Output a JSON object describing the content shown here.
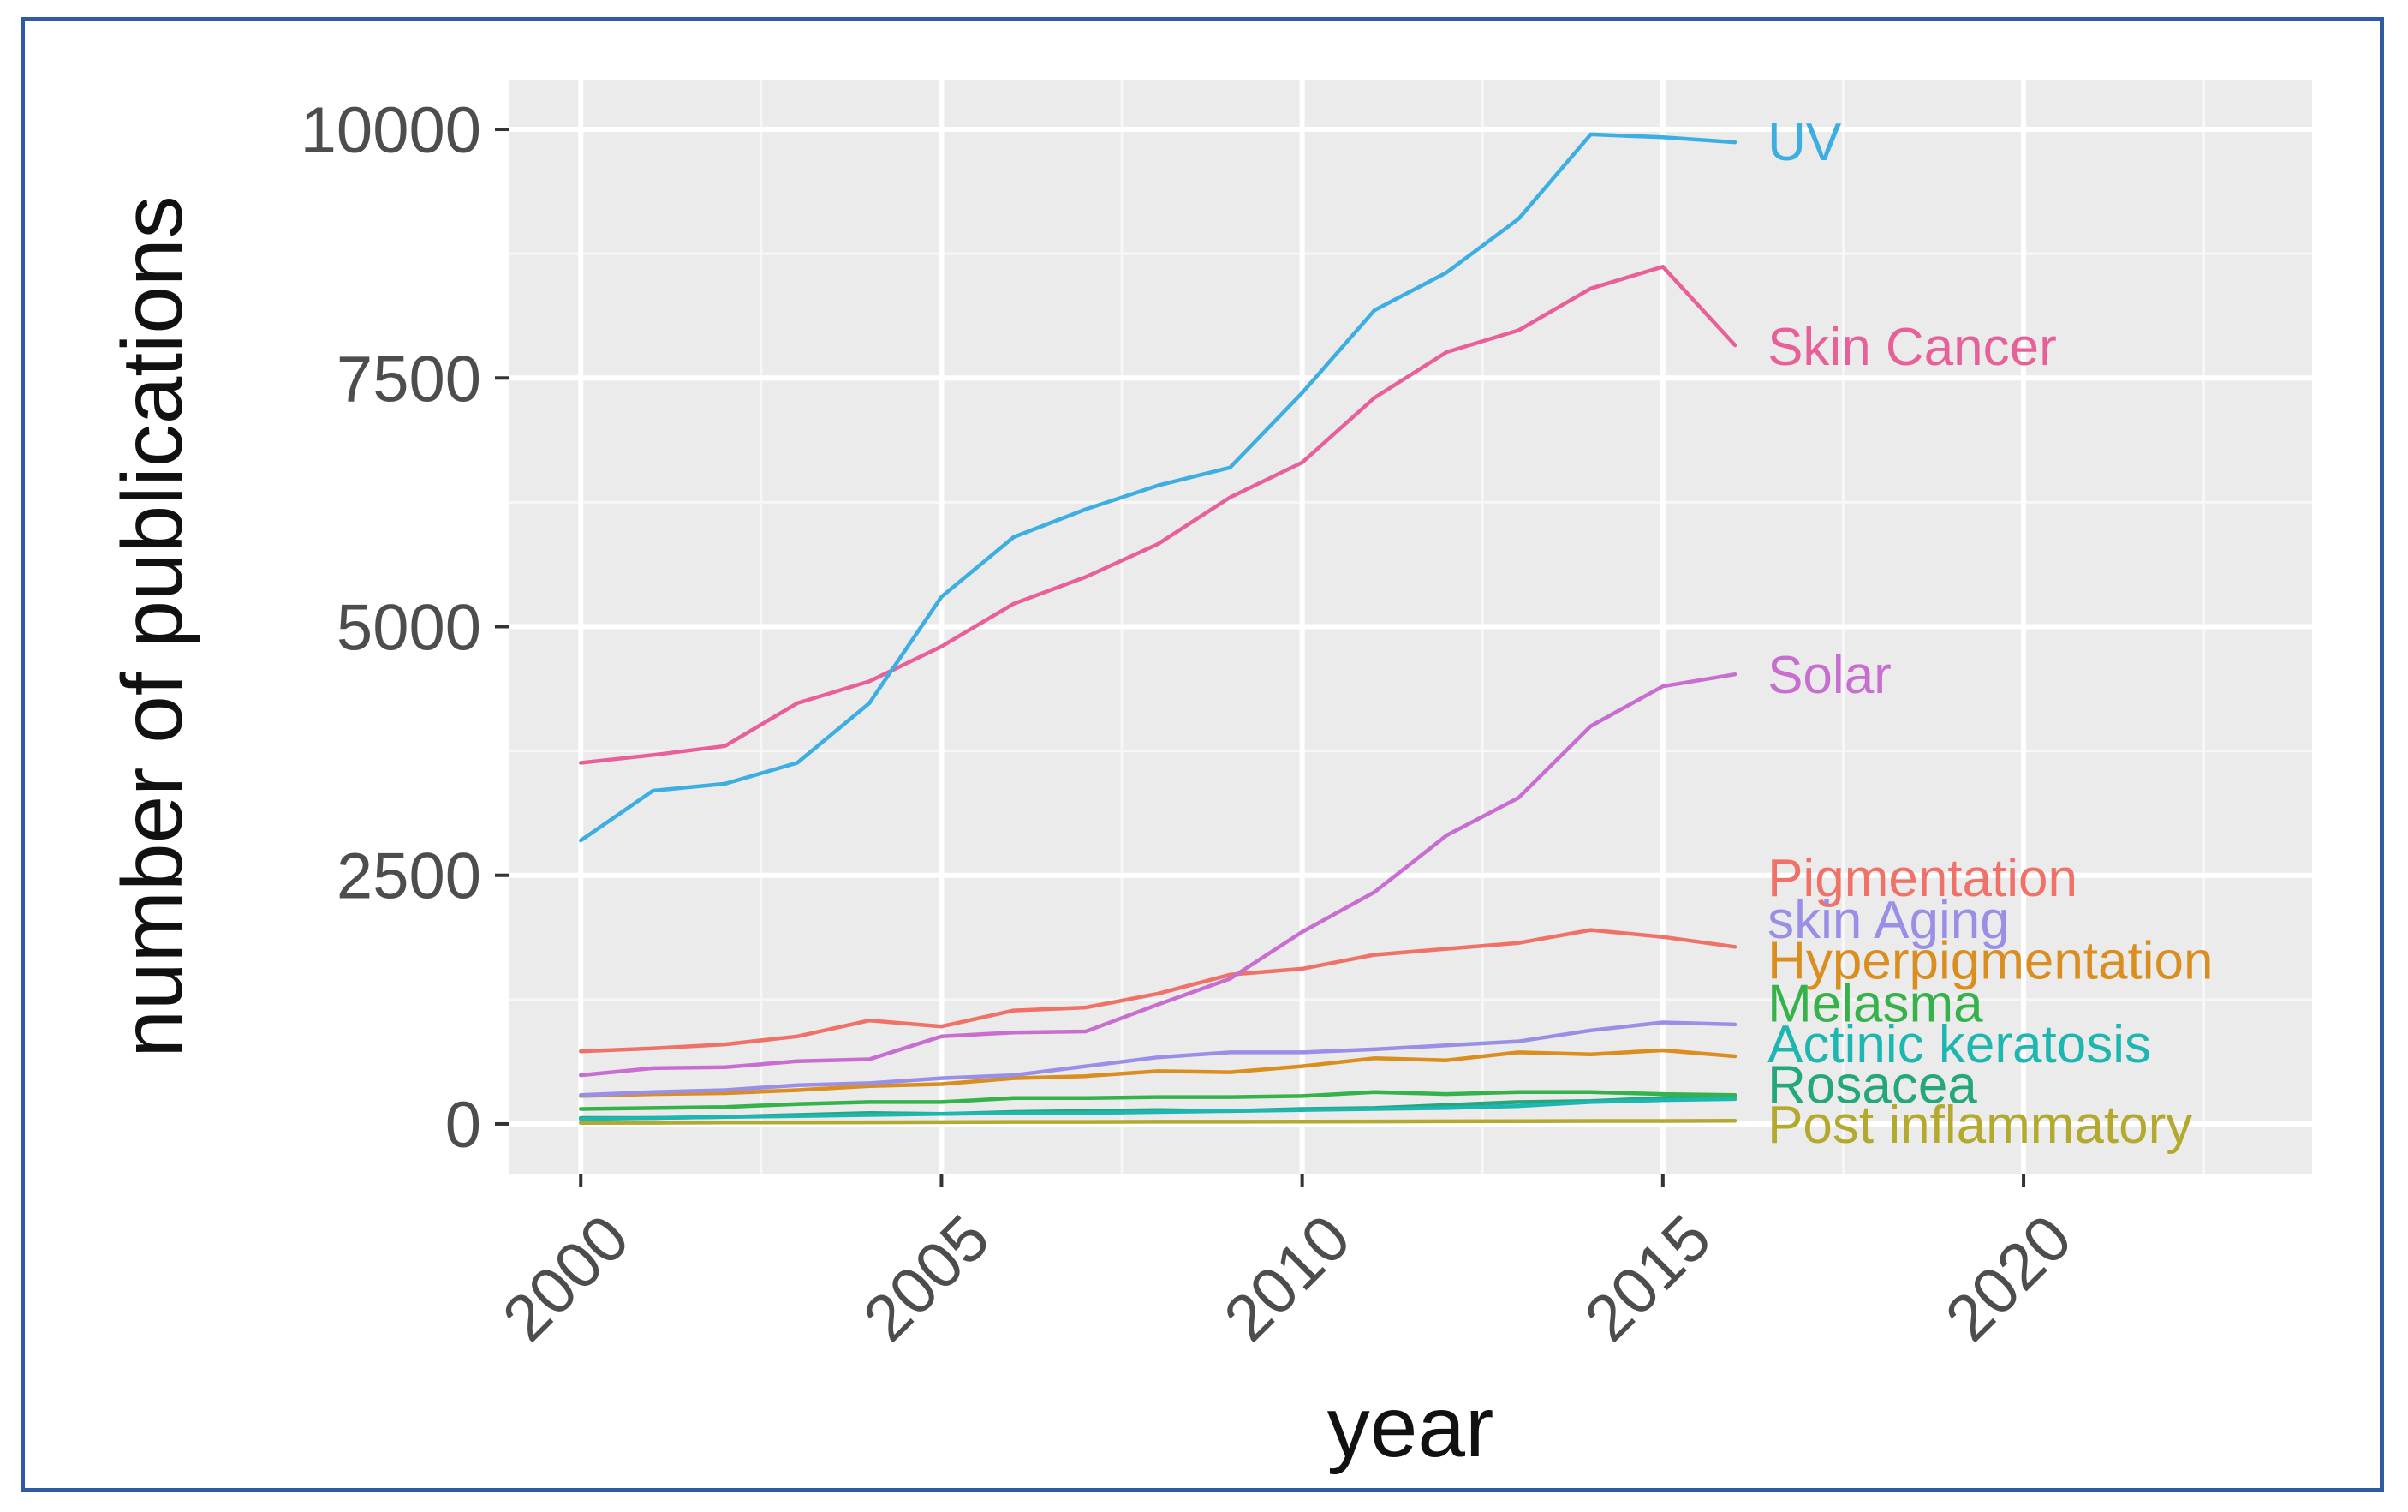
{
  "chart_data": {
    "type": "line",
    "title": "",
    "xlabel": "year",
    "ylabel": "number of publications",
    "xlim": [
      1999,
      2024
    ],
    "ylim": [
      -500,
      10500
    ],
    "x_ticks": [
      2000,
      2005,
      2010,
      2015,
      2020
    ],
    "y_ticks": [
      0,
      2500,
      5000,
      7500,
      10000
    ],
    "x_tick_labels": [
      "2000",
      "2005",
      "2010",
      "2015",
      "2020"
    ],
    "y_tick_labels": [
      "0",
      "2500",
      "5000",
      "7500",
      "10000"
    ],
    "grid": true,
    "legend": "direct labels at line ends (right)",
    "x": [
      2000,
      2001,
      2002,
      2003,
      2004,
      2005,
      2006,
      2007,
      2008,
      2009,
      2010,
      2011,
      2012,
      2013,
      2014,
      2015,
      2016
    ],
    "series": [
      {
        "name": "UV",
        "color": "#3daee2",
        "values": [
          2850,
          3350,
          3420,
          3630,
          4230,
          5300,
          5900,
          6180,
          6420,
          6600,
          7350,
          8180,
          8560,
          9100,
          9950,
          9920,
          9870
        ]
      },
      {
        "name": "Skin Cancer",
        "color": "#e8609a",
        "values": [
          3630,
          3710,
          3800,
          4230,
          4450,
          4800,
          5230,
          5500,
          5830,
          6300,
          6650,
          7300,
          7760,
          7980,
          8400,
          8620,
          7830
        ]
      },
      {
        "name": "Solar",
        "color": "#c76ed0",
        "values": [
          490,
          560,
          570,
          630,
          650,
          880,
          920,
          930,
          1200,
          1460,
          1930,
          2330,
          2900,
          3280,
          4000,
          4400,
          4520
        ]
      },
      {
        "name": "Pigmentation",
        "color": "#f07167",
        "values": [
          730,
          760,
          800,
          880,
          1040,
          980,
          1140,
          1170,
          1310,
          1500,
          1560,
          1700,
          1760,
          1820,
          1950,
          1880,
          1780
        ]
      },
      {
        "name": "skin Aging",
        "color": "#9a8fe6",
        "values": [
          290,
          320,
          340,
          390,
          410,
          460,
          490,
          580,
          670,
          720,
          720,
          750,
          790,
          830,
          940,
          1020,
          1000
        ]
      },
      {
        "name": "Hyperpigmentation",
        "color": "#d98e1f",
        "values": [
          280,
          300,
          310,
          340,
          380,
          400,
          460,
          480,
          530,
          520,
          580,
          660,
          640,
          720,
          700,
          740,
          680
        ]
      },
      {
        "name": "Melasma",
        "color": "#35b24a",
        "values": [
          150,
          160,
          170,
          200,
          220,
          220,
          260,
          260,
          270,
          270,
          280,
          320,
          300,
          320,
          320,
          300,
          290
        ]
      },
      {
        "name": "Actinic keratosis",
        "color": "#1db6b0",
        "values": [
          50,
          60,
          70,
          80,
          90,
          100,
          110,
          110,
          120,
          130,
          140,
          150,
          160,
          180,
          220,
          240,
          250
        ]
      },
      {
        "name": "Rosacea",
        "color": "#25a77e",
        "values": [
          60,
          60,
          70,
          90,
          110,
          100,
          120,
          130,
          140,
          130,
          150,
          160,
          190,
          220,
          230,
          260,
          280
        ]
      },
      {
        "name": "Post inflammatory",
        "color": "#b3a92e",
        "values": [
          10,
          12,
          14,
          15,
          16,
          18,
          20,
          20,
          22,
          22,
          24,
          25,
          26,
          28,
          30,
          30,
          32
        ]
      }
    ]
  }
}
